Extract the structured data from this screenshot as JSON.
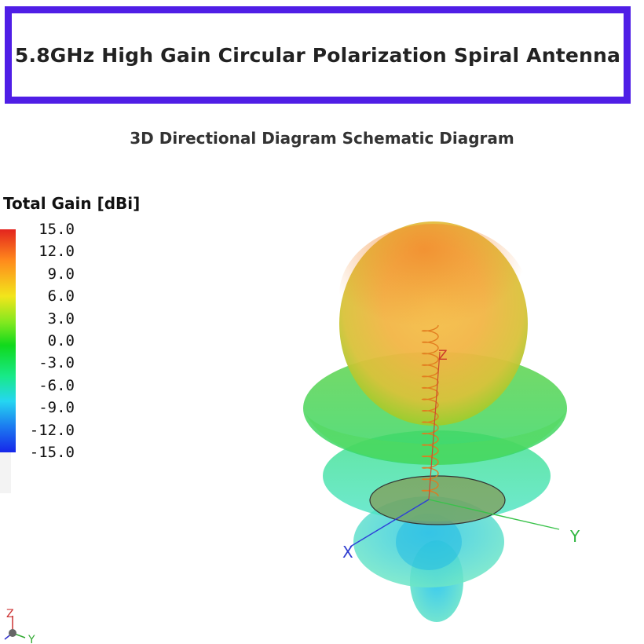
{
  "title": "5.8GHz High Gain Circular Polarization Spiral Antenna",
  "subtitle": "3D Directional Diagram Schematic Diagram",
  "legend": {
    "title": "Total Gain [dBi]",
    "ticks": [
      "15.0",
      "12.0",
      "9.0",
      "6.0",
      "3.0",
      "0.0",
      "-3.0",
      "-6.0",
      "-9.0",
      "-12.0",
      "-15.0"
    ]
  },
  "axes": {
    "x": "X",
    "y": "Y",
    "z": "Z"
  },
  "colors": {
    "border": "#4f1ee6",
    "max": "#e3241e",
    "min": "#1626ea"
  }
}
